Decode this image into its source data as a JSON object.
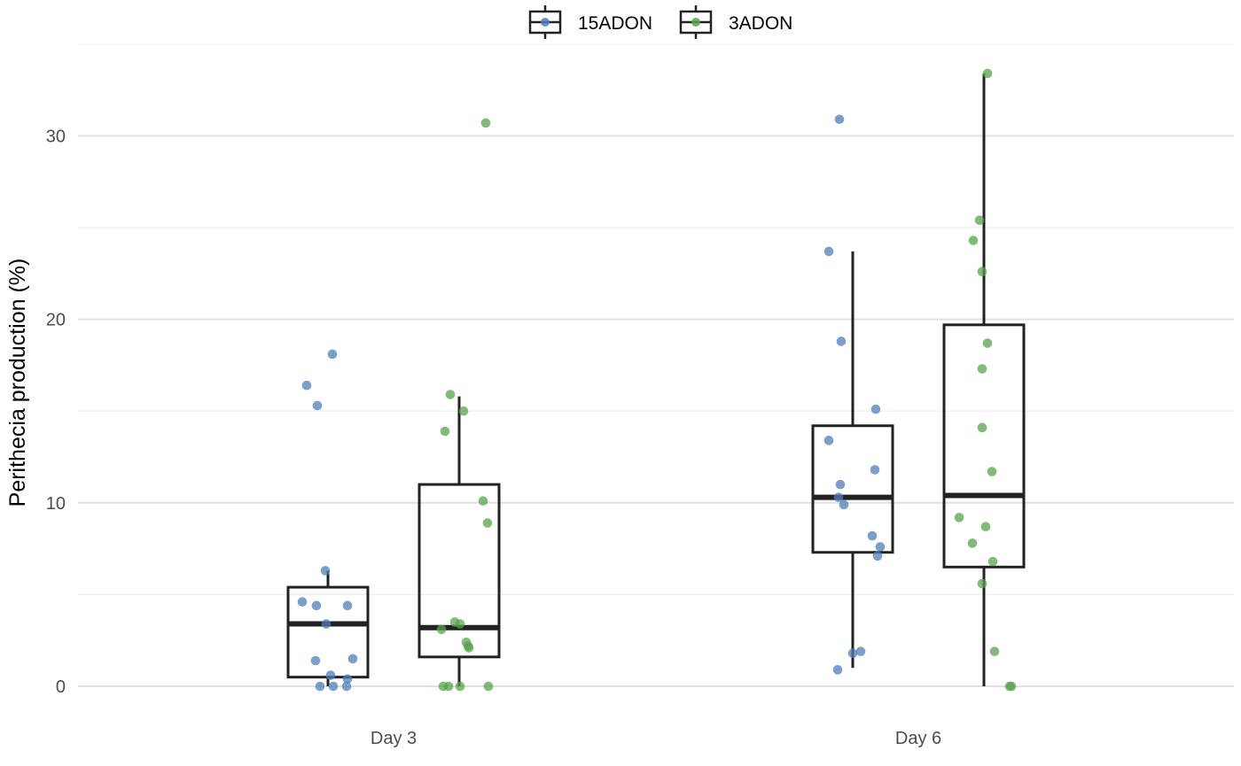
{
  "chart_data": {
    "type": "box",
    "title": "",
    "xlabel": "",
    "ylabel": "Perithecia production (%)",
    "ylim": [
      -0.6,
      35
    ],
    "yticks": [
      0,
      10,
      20,
      30
    ],
    "categories": [
      "Day 3",
      "Day 6"
    ],
    "grid": true,
    "legend": {
      "placement": "top"
    },
    "series": [
      {
        "name": "15ADON",
        "color": "#4e7fb8",
        "boxes": [
          {
            "category": "Day 3",
            "q1": 0.5,
            "median": 3.4,
            "q3": 5.4,
            "whisker_low": 0,
            "whisker_high": 6.3
          },
          {
            "category": "Day 6",
            "q1": 7.3,
            "median": 10.3,
            "q3": 14.2,
            "whisker_low": 1.0,
            "whisker_high": 23.7
          }
        ],
        "points": [
          {
            "category": "Day 3",
            "jitter": 0.05,
            "y": 18.1
          },
          {
            "category": "Day 3",
            "jitter": -0.24,
            "y": 16.4
          },
          {
            "category": "Day 3",
            "jitter": -0.12,
            "y": 15.3
          },
          {
            "category": "Day 3",
            "jitter": -0.03,
            "y": 6.3
          },
          {
            "category": "Day 3",
            "jitter": -0.29,
            "y": 4.6
          },
          {
            "category": "Day 3",
            "jitter": -0.13,
            "y": 4.4
          },
          {
            "category": "Day 3",
            "jitter": 0.22,
            "y": 4.4
          },
          {
            "category": "Day 3",
            "jitter": -0.02,
            "y": 3.4
          },
          {
            "category": "Day 3",
            "jitter": 0.28,
            "y": 1.5
          },
          {
            "category": "Day 3",
            "jitter": -0.14,
            "y": 1.4
          },
          {
            "category": "Day 3",
            "jitter": 0.03,
            "y": 0.6
          },
          {
            "category": "Day 3",
            "jitter": 0.22,
            "y": 0.4
          },
          {
            "category": "Day 3",
            "jitter": -0.09,
            "y": 0
          },
          {
            "category": "Day 3",
            "jitter": 0.06,
            "y": 0
          },
          {
            "category": "Day 3",
            "jitter": 0.21,
            "y": 0
          },
          {
            "category": "Day 6",
            "jitter": -0.15,
            "y": 30.9
          },
          {
            "category": "Day 6",
            "jitter": -0.27,
            "y": 23.7
          },
          {
            "category": "Day 6",
            "jitter": -0.13,
            "y": 18.8
          },
          {
            "category": "Day 6",
            "jitter": 0.26,
            "y": 15.1
          },
          {
            "category": "Day 6",
            "jitter": -0.27,
            "y": 13.4
          },
          {
            "category": "Day 6",
            "jitter": 0.25,
            "y": 11.8
          },
          {
            "category": "Day 6",
            "jitter": -0.14,
            "y": 11.0
          },
          {
            "category": "Day 6",
            "jitter": -0.16,
            "y": 10.3
          },
          {
            "category": "Day 6",
            "jitter": -0.1,
            "y": 9.9
          },
          {
            "category": "Day 6",
            "jitter": 0.22,
            "y": 8.2
          },
          {
            "category": "Day 6",
            "jitter": 0.31,
            "y": 7.6
          },
          {
            "category": "Day 6",
            "jitter": 0.28,
            "y": 7.1
          },
          {
            "category": "Day 6",
            "jitter": 0.09,
            "y": 1.9
          },
          {
            "category": "Day 6",
            "jitter": 0.0,
            "y": 1.8
          },
          {
            "category": "Day 6",
            "jitter": -0.17,
            "y": 0.9
          }
        ]
      },
      {
        "name": "3ADON",
        "color": "#55a44a",
        "boxes": [
          {
            "category": "Day 3",
            "q1": 1.6,
            "median": 3.2,
            "q3": 11.0,
            "whisker_low": 0,
            "whisker_high": 15.8
          },
          {
            "category": "Day 6",
            "q1": 6.5,
            "median": 10.4,
            "q3": 19.7,
            "whisker_low": 0,
            "whisker_high": 33.4
          }
        ],
        "points": [
          {
            "category": "Day 3",
            "jitter": 0.3,
            "y": 30.7
          },
          {
            "category": "Day 3",
            "jitter": -0.1,
            "y": 15.9
          },
          {
            "category": "Day 3",
            "jitter": 0.05,
            "y": 15.0
          },
          {
            "category": "Day 3",
            "jitter": -0.16,
            "y": 13.9
          },
          {
            "category": "Day 3",
            "jitter": 0.27,
            "y": 10.1
          },
          {
            "category": "Day 3",
            "jitter": 0.32,
            "y": 8.9
          },
          {
            "category": "Day 3",
            "jitter": -0.05,
            "y": 3.5
          },
          {
            "category": "Day 3",
            "jitter": 0.01,
            "y": 3.4
          },
          {
            "category": "Day 3",
            "jitter": -0.2,
            "y": 3.1
          },
          {
            "category": "Day 3",
            "jitter": 0.08,
            "y": 2.4
          },
          {
            "category": "Day 3",
            "jitter": 0.1,
            "y": 2.2
          },
          {
            "category": "Day 3",
            "jitter": 0.11,
            "y": 2.1
          },
          {
            "category": "Day 3",
            "jitter": -0.18,
            "y": 0
          },
          {
            "category": "Day 3",
            "jitter": -0.12,
            "y": 0
          },
          {
            "category": "Day 3",
            "jitter": 0.01,
            "y": 0
          },
          {
            "category": "Day 3",
            "jitter": 0.33,
            "y": 0
          },
          {
            "category": "Day 6",
            "jitter": 0.04,
            "y": 33.4
          },
          {
            "category": "Day 6",
            "jitter": -0.05,
            "y": 25.4
          },
          {
            "category": "Day 6",
            "jitter": -0.12,
            "y": 24.3
          },
          {
            "category": "Day 6",
            "jitter": -0.02,
            "y": 22.6
          },
          {
            "category": "Day 6",
            "jitter": 0.04,
            "y": 18.7
          },
          {
            "category": "Day 6",
            "jitter": -0.02,
            "y": 17.3
          },
          {
            "category": "Day 6",
            "jitter": -0.02,
            "y": 14.1
          },
          {
            "category": "Day 6",
            "jitter": 0.09,
            "y": 11.7
          },
          {
            "category": "Day 6",
            "jitter": -0.28,
            "y": 9.2
          },
          {
            "category": "Day 6",
            "jitter": 0.02,
            "y": 8.7
          },
          {
            "category": "Day 6",
            "jitter": -0.13,
            "y": 7.8
          },
          {
            "category": "Day 6",
            "jitter": 0.1,
            "y": 6.8
          },
          {
            "category": "Day 6",
            "jitter": -0.02,
            "y": 5.6
          },
          {
            "category": "Day 6",
            "jitter": 0.12,
            "y": 1.9
          },
          {
            "category": "Day 6",
            "jitter": 0.29,
            "y": 0
          },
          {
            "category": "Day 6",
            "jitter": 0.31,
            "y": 0
          }
        ]
      }
    ]
  }
}
